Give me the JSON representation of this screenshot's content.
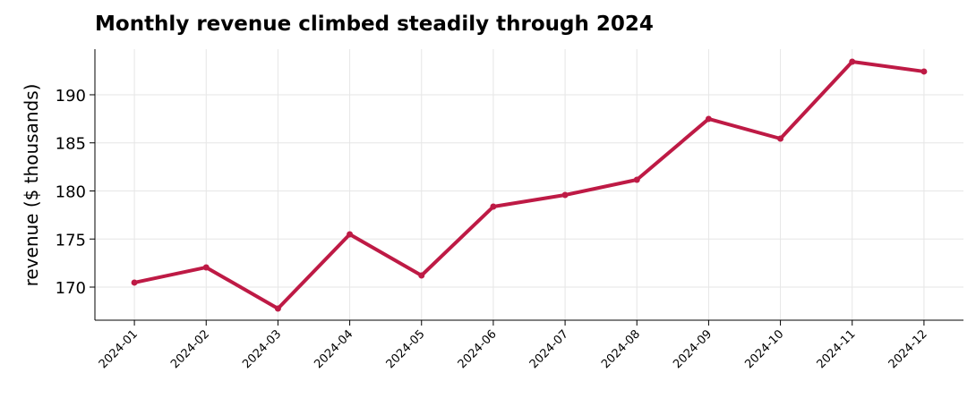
{
  "chart_data": {
    "type": "line",
    "title": "Monthly revenue climbed steadily through 2024",
    "y_label": "revenue ($ thousands)",
    "categories": [
      "2024-01",
      "2024-02",
      "2024-03",
      "2024-04",
      "2024-05",
      "2024-06",
      "2024-07",
      "2024-08",
      "2024-09",
      "2024-10",
      "2024-11",
      "2024-12"
    ],
    "series": [
      {
        "name": "revenue",
        "color": "#be1a45",
        "values": [
          170.47,
          172.05,
          167.77,
          175.49,
          171.21,
          178.37,
          179.58,
          181.16,
          187.49,
          185.44,
          193.44,
          192.42
        ]
      }
    ],
    "ylim": [
      166.56,
      194.74
    ],
    "yticks": [
      170,
      175,
      180,
      185,
      190
    ],
    "grid": true
  }
}
